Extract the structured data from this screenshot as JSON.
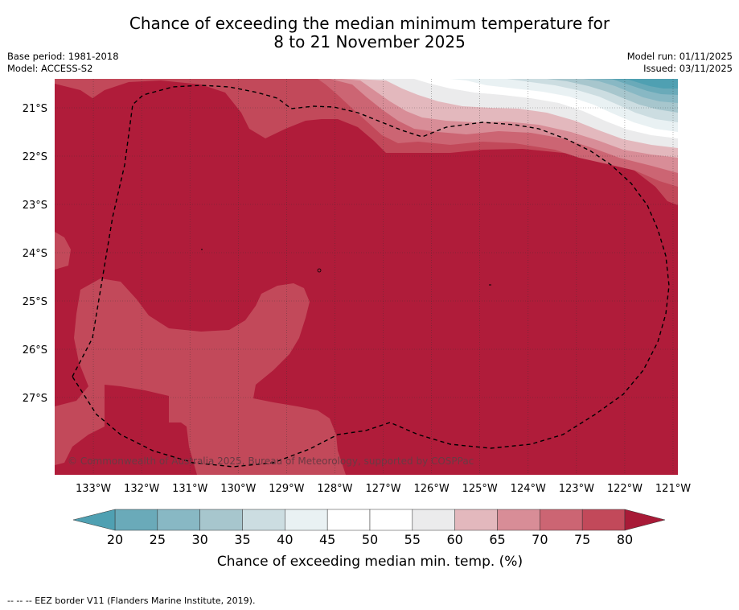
{
  "header": {
    "title_line1": "Chance of exceeding the median minimum temperature for",
    "title_line2": "8 to 21 November 2025",
    "base_period": "Base period: 1981-2018",
    "model": "Model: ACCESS-S2",
    "model_run": "Model run: 01/11/2025",
    "issued": "Issued: 03/11/2025"
  },
  "map": {
    "copyright": "© Commonwealth of Australia 2025, Bureau of Meteorology, supported by COSPPac"
  },
  "footnote": "--  --  -- EEZ border V11 (Flanders Marine Institute, 2019).",
  "colors": {
    "c80": "#b01c3a",
    "c75": "#c2495a",
    "c70": "#cc6573",
    "c65": "#d88d97",
    "c60": "#e3b8bd",
    "c55": "#ebebec",
    "c50": "#ffffff",
    "c45": "#ffffff",
    "c40": "#e9f1f3",
    "c35": "#ccdde1",
    "c30": "#a7c6cd",
    "c25": "#88b8c4",
    "c20": "#6aaab9",
    "under": "#4fa0b2",
    "over": "#a81a37"
  },
  "chart_data": {
    "type": "heatmap",
    "title": "Chance of exceeding the median minimum temperature for 8 to 21 November 2025",
    "x_ticks": [
      -133,
      -132,
      -131,
      -130,
      -129,
      -128,
      -127,
      -126,
      -125,
      -124,
      -123,
      -122,
      -121
    ],
    "x_tick_labels": [
      "133°W",
      "132°W",
      "131°W",
      "130°W",
      "129°W",
      "128°W",
      "127°W",
      "126°W",
      "125°W",
      "124°W",
      "123°W",
      "122°W",
      "121°W"
    ],
    "y_ticks": [
      -21,
      -22,
      -23,
      -24,
      -25,
      -26,
      -27
    ],
    "y_tick_labels": [
      "21°S",
      "22°S",
      "23°S",
      "24°S",
      "25°S",
      "26°S",
      "27°S"
    ],
    "xlim": [
      -133.8,
      -120.9
    ],
    "ylim": [
      -28.6,
      -20.4
    ],
    "colorbar": {
      "ticks": [
        20,
        25,
        30,
        35,
        40,
        45,
        50,
        55,
        60,
        65,
        70,
        75,
        80
      ],
      "tick_labels": [
        "20",
        "25",
        "30",
        "35",
        "40",
        "45",
        "50",
        "55",
        "60",
        "65",
        "70",
        "75",
        "80"
      ],
      "label": "Chance of exceeding median min. temp. (%)",
      "extend": "both"
    },
    "dominant_value_range": [
      75,
      80
    ],
    "secondary_regions": [
      {
        "level": "70-75",
        "location": "west-central and southwest"
      },
      {
        "level": "<20 to 75",
        "location": "northeast corner gradient"
      }
    ],
    "eez_border": "dashed outline"
  }
}
